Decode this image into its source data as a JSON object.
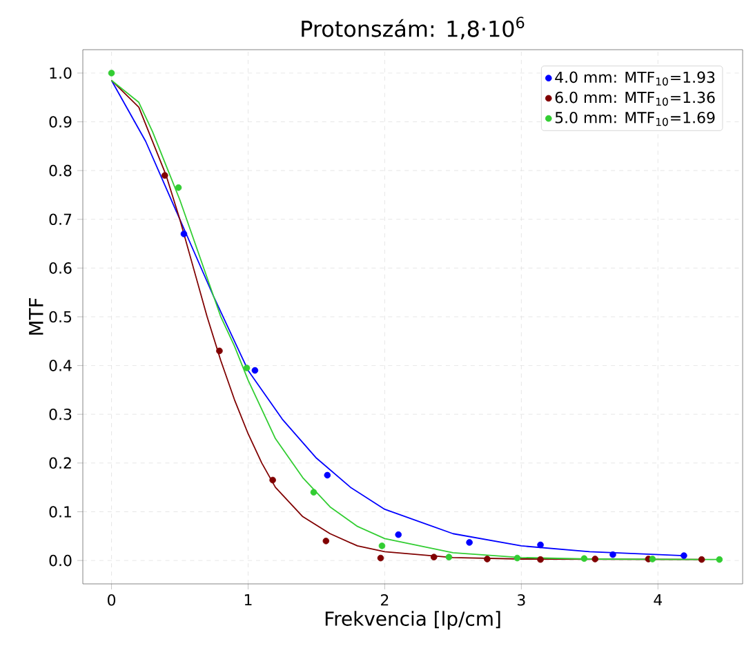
{
  "chart_data": {
    "type": "scatter",
    "title": "Protonszám: 1,8·10$^{6}$",
    "xlabel": "Frekvencia [lp/cm]",
    "ylabel": "MTF",
    "xlim": [
      -0.21,
      4.62
    ],
    "ylim": [
      -0.048,
      1.048
    ],
    "xticks": [
      0,
      1,
      2,
      3,
      4
    ],
    "yticks": [
      {
        "value": 0,
        "label": "0.0"
      },
      {
        "value": 0.1,
        "label": "0.1"
      },
      {
        "value": 0.2,
        "label": "0.2"
      },
      {
        "value": 0.3,
        "label": "0.3"
      },
      {
        "value": 0.4,
        "label": "0.4"
      },
      {
        "value": 0.5,
        "label": "0.5"
      },
      {
        "value": 0.6,
        "label": "0.6"
      },
      {
        "value": 0.7,
        "label": "0.7"
      },
      {
        "value": 0.8,
        "label": "0.8"
      },
      {
        "value": 0.9,
        "label": "0.9"
      },
      {
        "value": 1.0,
        "label": "1.0"
      }
    ],
    "grid": true,
    "legend": "top right",
    "series": [
      {
        "marker": "circle",
        "name": "4.0 mm: MTF$_{10}$=1.93",
        "color": "#0000ff",
        "x": [
          0.53,
          1.05,
          1.58,
          2.1,
          2.62,
          3.14,
          3.67,
          4.19
        ],
        "values": [
          0.67,
          0.39,
          0.175,
          0.053,
          0.037,
          0.032,
          0.012,
          0.01
        ]
      },
      {
        "marker": "circle",
        "name": "6.0 mm: MTF$_{10}$=1.36",
        "color": "#800000",
        "x": [
          0.39,
          0.79,
          1.18,
          1.57,
          1.97,
          2.36,
          2.75,
          3.14,
          3.54,
          3.93,
          4.32
        ],
        "values": [
          0.79,
          0.43,
          0.165,
          0.04,
          0.005,
          0.007,
          0.003,
          0.002,
          0.003,
          0.003,
          0.002
        ]
      },
      {
        "marker": "circle",
        "name": "5.0 mm: MTF$_{10}$=1.69",
        "color": "#32cd32",
        "x": [
          0,
          0.49,
          0.99,
          1.48,
          1.98,
          2.47,
          2.97,
          3.46,
          3.96,
          4.45
        ],
        "values": [
          1.0,
          0.765,
          0.395,
          0.14,
          0.03,
          0.007,
          0.005,
          0.004,
          0.003,
          0.002
        ]
      },
      {
        "type": "line",
        "marker": "none",
        "color": "#0000ff",
        "x": [
          0,
          0.25,
          0.5,
          0.75,
          1.0,
          1.25,
          1.5,
          1.75,
          2.0,
          2.5,
          3.0,
          3.5,
          4.19
        ],
        "values": [
          0.985,
          0.86,
          0.7,
          0.54,
          0.39,
          0.29,
          0.21,
          0.15,
          0.105,
          0.055,
          0.03,
          0.018,
          0.01
        ]
      },
      {
        "type": "line",
        "marker": "none",
        "color": "#800000",
        "x": [
          0,
          0.2,
          0.4,
          0.5,
          0.6,
          0.7,
          0.8,
          0.9,
          1.0,
          1.1,
          1.2,
          1.4,
          1.6,
          1.8,
          2.0,
          2.5,
          3.0,
          4.32
        ],
        "values": [
          0.985,
          0.93,
          0.79,
          0.7,
          0.6,
          0.5,
          0.41,
          0.33,
          0.26,
          0.2,
          0.15,
          0.09,
          0.055,
          0.03,
          0.018,
          0.006,
          0.003,
          0.002
        ]
      },
      {
        "type": "line",
        "marker": "none",
        "color": "#32cd32",
        "x": [
          0,
          0.2,
          0.3,
          0.4,
          0.5,
          0.6,
          0.7,
          0.8,
          0.9,
          1.0,
          1.1,
          1.2,
          1.4,
          1.6,
          1.8,
          2.0,
          2.5,
          3.0,
          3.5,
          4.45
        ],
        "values": [
          0.985,
          0.94,
          0.88,
          0.81,
          0.74,
          0.66,
          0.58,
          0.5,
          0.44,
          0.37,
          0.31,
          0.25,
          0.17,
          0.11,
          0.07,
          0.045,
          0.016,
          0.006,
          0.003,
          0.002
        ]
      }
    ]
  }
}
